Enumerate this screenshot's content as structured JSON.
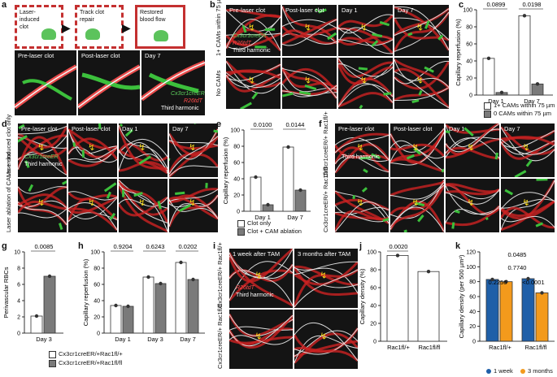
{
  "panels": [
    "a",
    "b",
    "c",
    "d",
    "e",
    "f",
    "g",
    "h",
    "i",
    "j",
    "k"
  ],
  "a": {
    "boxes": [
      "Laser-\ninduced\nclot",
      "Track clot\nrepair",
      "Restored\nblood flow"
    ],
    "images": [
      "Pre-laser clot",
      "Post-laser clot",
      "Day 7"
    ],
    "stain_green": "Cx3cr1creER",
    "stain_red": "R26tdT",
    "stain_white": "Third harmonic"
  },
  "b": {
    "images": [
      "Pre-laser clot",
      "Post-laser clot",
      "Day 1",
      "Day 7"
    ],
    "rows": [
      "1+ CAMs within 75 µm",
      "No CAMs"
    ],
    "stain_green": "Cx3cr1creER",
    "stain_red": "R26tdT",
    "stain_white": "Third harmonic"
  },
  "d": {
    "images": [
      "Pre-laser clot",
      "Post-laser clot",
      "Day 1",
      "Day 7"
    ],
    "rows": [
      "Laser-induced clot only",
      "Laser ablation of CAMs + clot"
    ],
    "stain_green": "Cx3cr1creER",
    "stain_white": "Third harmonic"
  },
  "f": {
    "images": [
      "Pre-laser clot",
      "Post-laser clot",
      "Day 1",
      "Day 7"
    ],
    "rows": [
      "Cx3cr1creER/+ Rac1fl/+",
      "Cx3cr1creER/+ Rac1fl/fl"
    ],
    "stain_white": "Third harmonic"
  },
  "i": {
    "images": [
      "1 week after TAM",
      "3 months after TAM"
    ],
    "rows": [
      "Cx3cr1creER/+ Rac1fl/+",
      "Cx3cr1creER/+ Rac1fl/fl"
    ],
    "stain_red": "R26tdT",
    "stain_white": "Third harmonic"
  },
  "legends": {
    "c": [
      "1+ CAMs within 75 µm",
      "0 CAMs within 75 µm"
    ],
    "e": [
      "Clot only",
      "Clot + CAM ablation"
    ],
    "gh": [
      "Cx3cr1creER/+Rac1fl/+",
      "Cx3cr1creER/+Rac1fl/fl"
    ],
    "k": [
      "1 week",
      "3 months"
    ]
  },
  "colors": {
    "green": "#3fbf3f",
    "red": "#e02a2a",
    "blue": "#1f5fa8",
    "orange": "#f39a1c",
    "gray": "#7a7a7a"
  },
  "chart_data": [
    {
      "panel": "c",
      "type": "bar",
      "ylabel": "Capillary reperfusion (%)",
      "ylim": [
        0,
        100
      ],
      "yticks": [
        0,
        20,
        40,
        60,
        80,
        100
      ],
      "categories": [
        "Day 1",
        "Day 7"
      ],
      "series": [
        {
          "name": "1+ CAMs within 75 µm",
          "values": [
            43,
            93
          ]
        },
        {
          "name": "0 CAMs within 75 µm",
          "values": [
            3,
            13
          ]
        }
      ],
      "pvalues": [
        "0.0899",
        "0.0198"
      ]
    },
    {
      "panel": "e",
      "type": "bar",
      "ylabel": "Capillary reperfusion (%)",
      "ylim": [
        0,
        100
      ],
      "yticks": [
        0,
        20,
        40,
        60,
        80,
        100
      ],
      "categories": [
        "Day 1",
        "Day 7"
      ],
      "series": [
        {
          "name": "Clot only",
          "values": [
            42,
            79
          ]
        },
        {
          "name": "Clot + CAM ablation",
          "values": [
            8,
            26
          ]
        }
      ],
      "pvalues": [
        "0.0100",
        "0.0144"
      ]
    },
    {
      "panel": "g",
      "type": "bar",
      "ylabel": "Perivascular RBCs",
      "ylim": [
        0,
        10
      ],
      "yticks": [
        0,
        2,
        4,
        6,
        8,
        10
      ],
      "categories": [
        "Day 3"
      ],
      "series": [
        {
          "name": "Cx3cr1creER/+Rac1fl/+",
          "values": [
            2.1
          ]
        },
        {
          "name": "Cx3cr1creER/+Rac1fl/fl",
          "values": [
            7.0
          ]
        }
      ],
      "pvalues": [
        "0.0085"
      ]
    },
    {
      "panel": "h",
      "type": "bar",
      "ylabel": "Capillary reperfusion (%)",
      "ylim": [
        0,
        100
      ],
      "yticks": [
        0,
        20,
        40,
        60,
        80,
        100
      ],
      "categories": [
        "Day 1",
        "Day 3",
        "Day 7"
      ],
      "series": [
        {
          "name": "Cx3cr1creER/+Rac1fl/+",
          "values": [
            34,
            69,
            87
          ]
        },
        {
          "name": "Cx3cr1creER/+Rac1fl/fl",
          "values": [
            33,
            61,
            66
          ]
        }
      ],
      "pvalues": [
        "0.9204",
        "0.6243",
        "0.0202"
      ]
    },
    {
      "panel": "j",
      "type": "bar",
      "ylabel": "Capillary density (%)",
      "ylim": [
        0,
        100
      ],
      "yticks": [
        0,
        20,
        40,
        60,
        80,
        100
      ],
      "categories": [
        "Rac1fl/+",
        "Rac1fl/fl"
      ],
      "series": [
        {
          "name": "",
          "values": [
            96,
            78
          ]
        }
      ],
      "pvalues": [
        "0.0020"
      ]
    },
    {
      "panel": "k",
      "type": "bar",
      "ylabel": "Capillary density (per 500 µm²)",
      "ylim": [
        0,
        120
      ],
      "yticks": [
        0,
        20,
        40,
        60,
        80,
        100,
        120
      ],
      "categories": [
        "Rac1fl/+",
        "Rac1fl/fl"
      ],
      "series": [
        {
          "name": "1 week",
          "values": [
            83,
            84
          ]
        },
        {
          "name": "3 months",
          "values": [
            80,
            65
          ]
        }
      ],
      "pvalues": [
        "0.2256",
        "<0.0001",
        "0.7740",
        "0.0485"
      ]
    }
  ]
}
